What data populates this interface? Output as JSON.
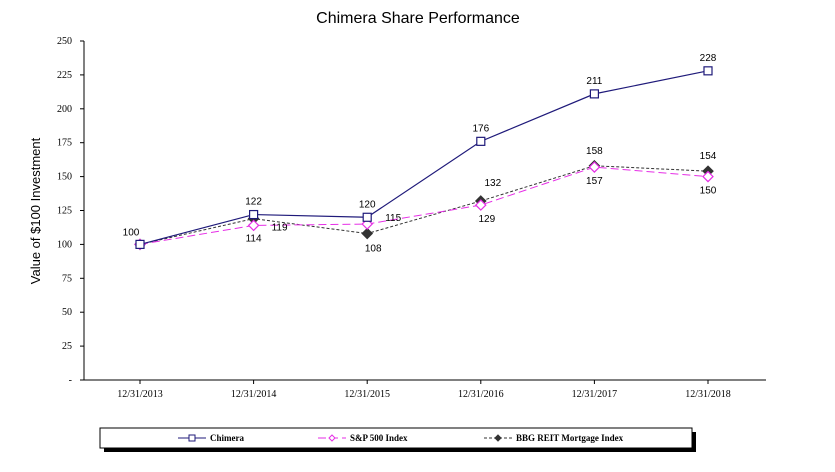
{
  "chart_data": {
    "type": "line",
    "title": "Chimera Share Performance",
    "xlabel": "",
    "ylabel": "Value of $100 Investment",
    "categories": [
      "12/31/2013",
      "12/31/2014",
      "12/31/2015",
      "12/31/2016",
      "12/31/2017",
      "12/31/2018"
    ],
    "ylim": [
      0,
      250
    ],
    "yticks": [
      "-",
      "25",
      "50",
      "75",
      "100",
      "125",
      "150",
      "175",
      "200",
      "225",
      "250"
    ],
    "grid": false,
    "legend_placement": "bottom",
    "series": [
      {
        "name": "Chimera",
        "values": [
          100,
          122,
          120,
          176,
          211,
          228
        ],
        "color": "#1f1a7a",
        "marker": "square-open",
        "dash": "solid"
      },
      {
        "name": "S&P 500 Index",
        "values": [
          100,
          114,
          115,
          129,
          157,
          150
        ],
        "color": "#e62ee6",
        "marker": "diamond-open",
        "dash": "dashed"
      },
      {
        "name": "BBG REIT Mortgage Index",
        "values": [
          100,
          119,
          108,
          132,
          158,
          154
        ],
        "color": "#333333",
        "marker": "diamond-filled",
        "dash": "dotted"
      }
    ]
  }
}
